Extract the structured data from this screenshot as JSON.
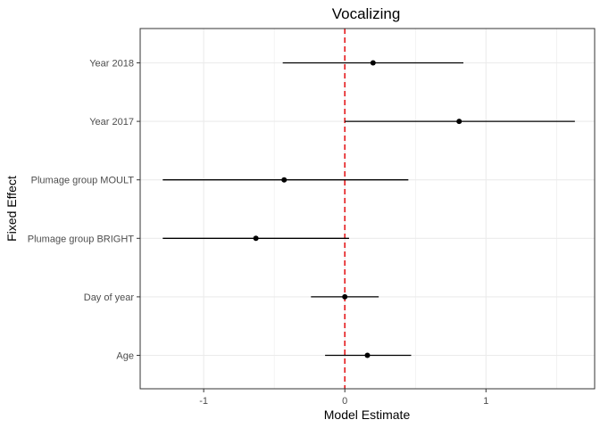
{
  "chart_data": {
    "type": "scatter",
    "subtype": "coefficient-plot-with-intervals",
    "title": "Vocalizing",
    "xlabel": "Model Estimate",
    "ylabel": "Fixed Effect",
    "xlim": [
      -1.45,
      1.77
    ],
    "x_ticks": [
      -1,
      0,
      1
    ],
    "x_tick_labels": [
      "-1",
      "0",
      "1"
    ],
    "reference_line": {
      "x": 0,
      "style": "dashed",
      "color": "#e41a1c"
    },
    "grid": true,
    "categories": [
      "Year 2018",
      "Year 2017",
      "Plumage group MOULT",
      "Plumage group BRIGHT",
      "Day of year",
      "Age"
    ],
    "estimates": [
      0.2,
      0.81,
      -0.43,
      -0.63,
      0.0,
      0.16
    ],
    "lower": [
      -0.44,
      0.0,
      -1.29,
      -1.29,
      -0.24,
      -0.14
    ],
    "upper": [
      0.84,
      1.63,
      0.45,
      0.03,
      0.24,
      0.47
    ],
    "colors": {
      "point": "#000000",
      "interval": "#000000",
      "panel_border": "#333333",
      "grid": "#ebebeb"
    }
  }
}
